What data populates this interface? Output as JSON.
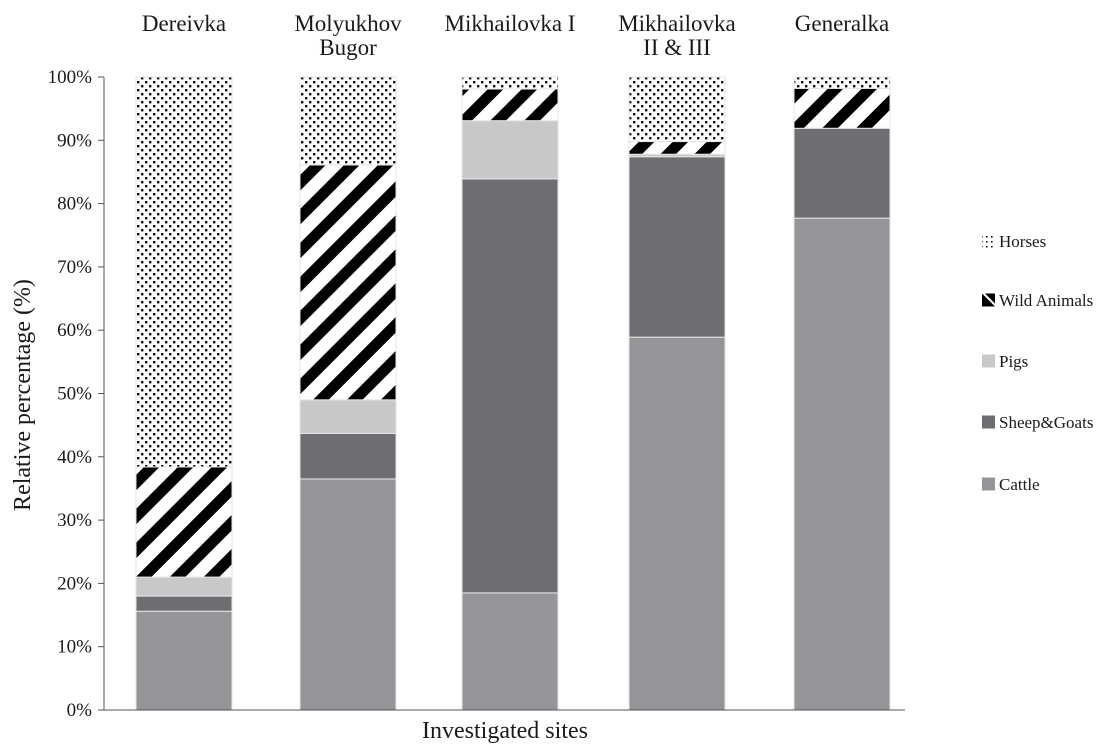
{
  "chart_data": {
    "type": "bar",
    "stacked": true,
    "xlabel": "Investigated sites",
    "ylabel": "Relative percentage (%)",
    "ylim": [
      0,
      100
    ],
    "yticks": [
      "0%",
      "10%",
      "20%",
      "30%",
      "40%",
      "50%",
      "60%",
      "70%",
      "80%",
      "90%",
      "100%"
    ],
    "categories": [
      [
        "Dereivka"
      ],
      [
        "Molyukhov",
        "Bugor"
      ],
      [
        "Mikhailovka I"
      ],
      [
        "Mikhailovka",
        "II & III"
      ],
      [
        "Generalka"
      ]
    ],
    "series": [
      {
        "name": "Cattle",
        "key": "cattle",
        "color": "#939598",
        "pattern": "solid",
        "values": [
          15.6,
          36.5,
          18.5,
          58.9,
          77.7
        ]
      },
      {
        "name": "Sheep&Goats",
        "key": "sheep",
        "color": "#6d6e71",
        "pattern": "solid",
        "values": [
          2.4,
          7.2,
          65.4,
          28.5,
          14.2
        ]
      },
      {
        "name": "Pigs",
        "key": "pigs",
        "color": "#c7c8ca",
        "pattern": "solid",
        "values": [
          3.0,
          5.3,
          9.2,
          0.4,
          0.0
        ]
      },
      {
        "name": "Wild Animals",
        "key": "wild",
        "color": "#000000",
        "pattern": "stripes",
        "values": [
          17.4,
          37.1,
          5.0,
          2.0,
          6.3
        ]
      },
      {
        "name": "Horses",
        "key": "horses",
        "color": "#000000",
        "pattern": "dots",
        "values": [
          61.6,
          13.9,
          1.9,
          10.2,
          1.8
        ]
      }
    ],
    "legend": {
      "placement": "right",
      "order": [
        "horses",
        "wild",
        "pigs",
        "sheep",
        "cattle"
      ]
    },
    "grid": false
  }
}
